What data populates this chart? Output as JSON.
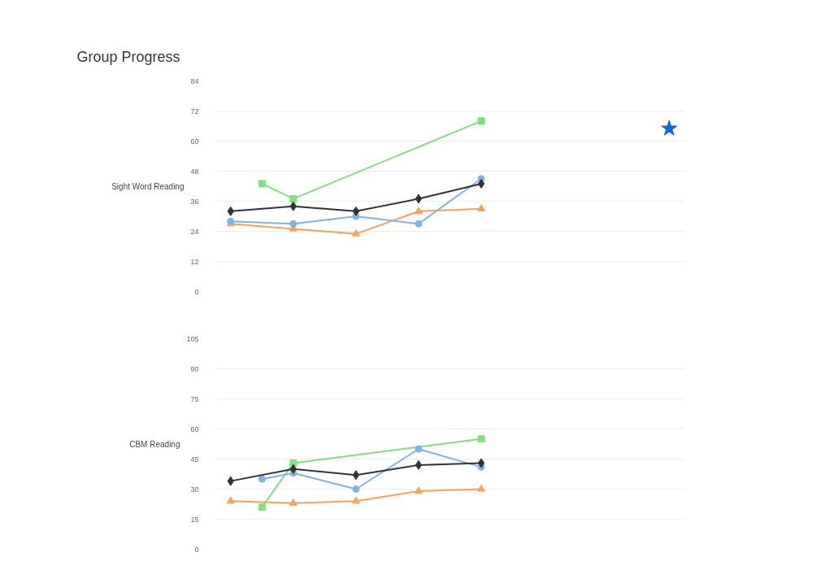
{
  "chart_data": [
    {
      "type": "line",
      "title": "Group Progress",
      "ylabel": "Sight Word Reading",
      "categories": [
        null,
        null,
        null,
        null,
        null,
        null,
        null,
        null,
        null,
        null,
        null,
        null,
        null,
        null,
        null
      ],
      "ylim": [
        0,
        84
      ],
      "yticks": [
        0,
        12,
        24,
        36,
        48,
        60,
        72,
        84
      ],
      "grid": "y",
      "tick_labels": "y",
      "series": [
        {
          "color": "#333333",
          "marker": "diamond",
          "values": [
            32,
            null,
            34,
            null,
            32,
            null,
            37,
            null,
            43,
            null,
            null,
            null,
            null,
            null,
            null
          ]
        },
        {
          "color": "#7fb3e8",
          "marker": "circle",
          "values": [
            28,
            null,
            27,
            null,
            30,
            null,
            27,
            null,
            45,
            null,
            null,
            null,
            null,
            null,
            null
          ]
        },
        {
          "color": "#f5a25d",
          "marker": "triangle",
          "values": [
            27,
            null,
            25,
            null,
            23,
            null,
            32,
            null,
            33,
            null,
            null,
            null,
            null,
            null,
            null
          ]
        },
        {
          "color": "#7fe07f",
          "marker": "square",
          "values": [
            null,
            43,
            37,
            null,
            null,
            null,
            null,
            null,
            68,
            null,
            null,
            null,
            null,
            null,
            null
          ]
        },
        {
          "color": "#1565d8",
          "marker": "star",
          "values": [
            null,
            null,
            null,
            null,
            null,
            null,
            null,
            null,
            null,
            null,
            null,
            null,
            null,
            null,
            65
          ]
        }
      ]
    },
    {
      "type": "line",
      "ylabel": "CBM Reading",
      "categories": [
        null,
        null,
        null,
        null,
        null,
        null,
        null,
        null,
        null,
        null,
        null,
        null,
        null,
        null,
        null
      ],
      "ylim": [
        0,
        105
      ],
      "yticks": [
        0,
        15,
        30,
        45,
        60,
        75,
        90,
        105
      ],
      "grid": "y",
      "tick_labels": "y",
      "series": [
        {
          "color": "#333333",
          "marker": "diamond",
          "values": [
            34,
            null,
            40,
            null,
            37,
            null,
            42,
            null,
            43,
            null,
            null,
            null,
            null,
            null,
            null
          ]
        },
        {
          "color": "#7fb3e8",
          "marker": "circle",
          "values": [
            null,
            35,
            38,
            null,
            30,
            null,
            50,
            null,
            41,
            null,
            null,
            null,
            null,
            null,
            null
          ]
        },
        {
          "color": "#f5a25d",
          "marker": "triangle",
          "values": [
            24,
            null,
            23,
            null,
            24,
            null,
            29,
            null,
            30,
            null,
            null,
            null,
            null,
            null,
            null
          ]
        },
        {
          "color": "#7fe07f",
          "marker": "square",
          "values": [
            null,
            21,
            43,
            null,
            null,
            null,
            null,
            null,
            55,
            null,
            null,
            null,
            null,
            null,
            null
          ]
        }
      ]
    }
  ]
}
